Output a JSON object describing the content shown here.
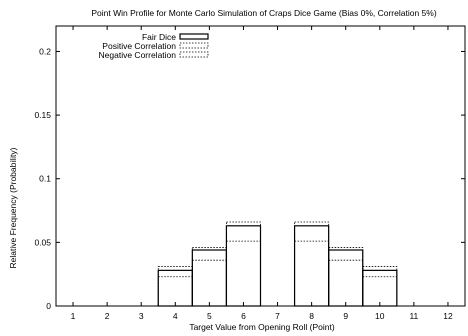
{
  "chart_data": {
    "type": "bar",
    "title": "Point Win Profile for Monte Carlo Simulation of Craps Dice Game (Bias 0%, Correlation 5%)",
    "xlabel": "Target Value from Opening Roll (Point)",
    "ylabel": "Relative Frequency (Probability)",
    "xlim": [
      0.5,
      12.5
    ],
    "ylim": [
      0,
      0.22
    ],
    "x_ticks": [
      "1",
      "2",
      "3",
      "4",
      "5",
      "6",
      "7",
      "8",
      "9",
      "10",
      "11",
      "12"
    ],
    "y_ticks": [
      {
        "value": 0,
        "label": "0"
      },
      {
        "value": 0.05,
        "label": "0.05"
      },
      {
        "value": 0.1,
        "label": "0.1"
      },
      {
        "value": 0.15,
        "label": "0.15"
      },
      {
        "value": 0.2,
        "label": "0.2"
      }
    ],
    "grid": false,
    "legend_position": "top-left",
    "categories": [
      4,
      5,
      6,
      8,
      9,
      10
    ],
    "series": [
      {
        "name": "Fair Dice",
        "style": "solid",
        "values": [
          0.028,
          0.044,
          0.063,
          0.063,
          0.044,
          0.028
        ]
      },
      {
        "name": "Positive Correlation",
        "style": "dotted",
        "values": [
          0.031,
          0.046,
          0.066,
          0.066,
          0.046,
          0.031
        ]
      },
      {
        "name": "Negative Correlation",
        "style": "dotted",
        "values": [
          0.023,
          0.036,
          0.051,
          0.051,
          0.036,
          0.023
        ]
      }
    ]
  }
}
